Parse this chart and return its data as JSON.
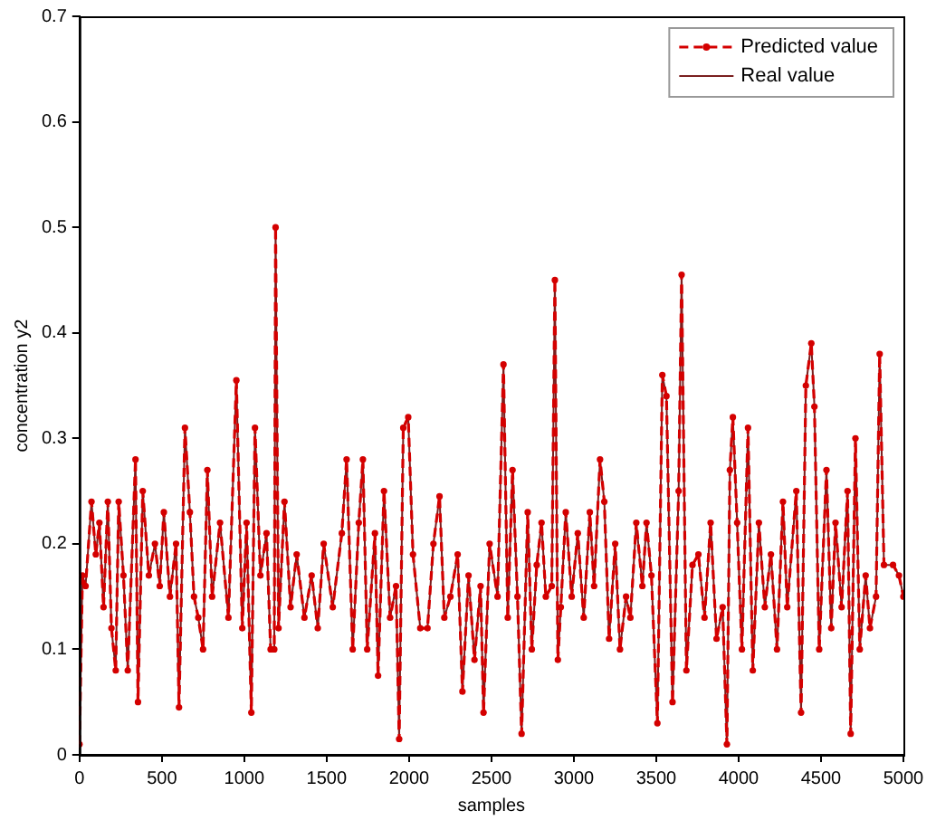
{
  "chart_data": {
    "type": "line",
    "xlabel": "samples",
    "ylabel": "concentration y2",
    "xlim": [
      0,
      5000
    ],
    "xticks": [
      0,
      500,
      1000,
      1500,
      2000,
      2500,
      3000,
      3500,
      4000,
      4500,
      5000
    ],
    "ylim": [
      0,
      0.7
    ],
    "yticks": [
      0,
      0.1,
      0.2,
      0.3,
      0.4,
      0.5,
      0.6,
      0.7
    ],
    "grid": false,
    "legend": "top right",
    "x": [
      0,
      18,
      37,
      73,
      99,
      121,
      146,
      172,
      194,
      220,
      238,
      267,
      293,
      340,
      355,
      384,
      421,
      458,
      487,
      512,
      549,
      586,
      604,
      640,
      670,
      695,
      721,
      750,
      776,
      805,
      853,
      904,
      952,
      988,
      1014,
      1043,
      1065,
      1098,
      1135,
      1160,
      1182,
      1190,
      1208,
      1244,
      1281,
      1318,
      1365,
      1409,
      1446,
      1482,
      1537,
      1592,
      1621,
      1658,
      1695,
      1720,
      1746,
      1793,
      1812,
      1848,
      1885,
      1921,
      1940,
      1965,
      1995,
      2024,
      2068,
      2112,
      2148,
      2185,
      2214,
      2251,
      2295,
      2324,
      2361,
      2397,
      2434,
      2452,
      2489,
      2537,
      2573,
      2599,
      2628,
      2658,
      2683,
      2720,
      2745,
      2775,
      2804,
      2830,
      2866,
      2885,
      2903,
      2921,
      2951,
      2987,
      3024,
      3060,
      3097,
      3123,
      3159,
      3185,
      3214,
      3251,
      3280,
      3317,
      3343,
      3379,
      3416,
      3441,
      3471,
      3507,
      3537,
      3562,
      3599,
      3636,
      3654,
      3683,
      3720,
      3756,
      3793,
      3830,
      3866,
      3903,
      3929,
      3947,
      3965,
      3991,
      4020,
      4057,
      4086,
      4123,
      4159,
      4196,
      4233,
      4269,
      4295,
      4350,
      4379,
      4408,
      4441,
      4460,
      4489,
      4533,
      4562,
      4588,
      4625,
      4661,
      4680,
      4709,
      4735,
      4771,
      4797,
      4834,
      4856,
      4882,
      4937,
      4973,
      5000
    ],
    "series": [
      {
        "name": "Predicted value",
        "color": "#d40000",
        "line_style": "dashed",
        "marker": "circle",
        "values": [
          0.01,
          0.17,
          0.16,
          0.24,
          0.19,
          0.22,
          0.14,
          0.24,
          0.12,
          0.08,
          0.24,
          0.17,
          0.08,
          0.28,
          0.05,
          0.25,
          0.17,
          0.2,
          0.16,
          0.23,
          0.15,
          0.2,
          0.045,
          0.31,
          0.23,
          0.15,
          0.13,
          0.1,
          0.27,
          0.15,
          0.22,
          0.13,
          0.355,
          0.12,
          0.22,
          0.04,
          0.31,
          0.17,
          0.21,
          0.1,
          0.1,
          0.5,
          0.12,
          0.24,
          0.14,
          0.19,
          0.13,
          0.17,
          0.12,
          0.2,
          0.14,
          0.21,
          0.28,
          0.1,
          0.22,
          0.28,
          0.1,
          0.21,
          0.075,
          0.25,
          0.13,
          0.16,
          0.015,
          0.31,
          0.32,
          0.19,
          0.12,
          0.12,
          0.2,
          0.245,
          0.13,
          0.15,
          0.19,
          0.06,
          0.17,
          0.09,
          0.16,
          0.04,
          0.2,
          0.15,
          0.37,
          0.13,
          0.27,
          0.15,
          0.02,
          0.23,
          0.1,
          0.18,
          0.22,
          0.15,
          0.16,
          0.45,
          0.09,
          0.14,
          0.23,
          0.15,
          0.21,
          0.13,
          0.23,
          0.16,
          0.28,
          0.24,
          0.11,
          0.2,
          0.1,
          0.15,
          0.13,
          0.22,
          0.16,
          0.22,
          0.17,
          0.03,
          0.36,
          0.34,
          0.05,
          0.25,
          0.455,
          0.08,
          0.18,
          0.19,
          0.13,
          0.22,
          0.11,
          0.14,
          0.01,
          0.27,
          0.32,
          0.22,
          0.1,
          0.31,
          0.08,
          0.22,
          0.14,
          0.19,
          0.1,
          0.24,
          0.14,
          0.25,
          0.04,
          0.35,
          0.39,
          0.33,
          0.1,
          0.27,
          0.12,
          0.22,
          0.14,
          0.25,
          0.02,
          0.3,
          0.1,
          0.17,
          0.12,
          0.15,
          0.38,
          0.18,
          0.18,
          0.17,
          0.15
        ]
      },
      {
        "name": "Real value",
        "color": "#7a1f1f",
        "line_style": "solid",
        "marker": "none",
        "values": [
          0.01,
          0.17,
          0.16,
          0.24,
          0.19,
          0.22,
          0.14,
          0.24,
          0.12,
          0.08,
          0.24,
          0.17,
          0.08,
          0.28,
          0.05,
          0.25,
          0.17,
          0.2,
          0.16,
          0.23,
          0.15,
          0.2,
          0.045,
          0.31,
          0.23,
          0.15,
          0.13,
          0.1,
          0.27,
          0.15,
          0.22,
          0.13,
          0.355,
          0.12,
          0.22,
          0.04,
          0.31,
          0.17,
          0.21,
          0.1,
          0.1,
          0.5,
          0.12,
          0.24,
          0.14,
          0.19,
          0.13,
          0.17,
          0.12,
          0.2,
          0.14,
          0.21,
          0.28,
          0.1,
          0.22,
          0.28,
          0.1,
          0.21,
          0.075,
          0.25,
          0.13,
          0.16,
          0.015,
          0.31,
          0.32,
          0.19,
          0.12,
          0.12,
          0.2,
          0.245,
          0.13,
          0.15,
          0.19,
          0.06,
          0.17,
          0.09,
          0.16,
          0.04,
          0.2,
          0.15,
          0.37,
          0.13,
          0.27,
          0.15,
          0.02,
          0.23,
          0.1,
          0.18,
          0.22,
          0.15,
          0.16,
          0.45,
          0.09,
          0.14,
          0.23,
          0.15,
          0.21,
          0.13,
          0.23,
          0.16,
          0.28,
          0.24,
          0.11,
          0.2,
          0.1,
          0.15,
          0.13,
          0.22,
          0.16,
          0.22,
          0.17,
          0.03,
          0.36,
          0.34,
          0.05,
          0.25,
          0.455,
          0.08,
          0.18,
          0.19,
          0.13,
          0.22,
          0.11,
          0.14,
          0.01,
          0.27,
          0.32,
          0.22,
          0.1,
          0.31,
          0.08,
          0.22,
          0.14,
          0.19,
          0.1,
          0.24,
          0.14,
          0.25,
          0.04,
          0.35,
          0.39,
          0.33,
          0.1,
          0.27,
          0.12,
          0.22,
          0.14,
          0.25,
          0.02,
          0.3,
          0.1,
          0.17,
          0.12,
          0.15,
          0.38,
          0.18,
          0.18,
          0.17,
          0.15
        ]
      }
    ]
  }
}
